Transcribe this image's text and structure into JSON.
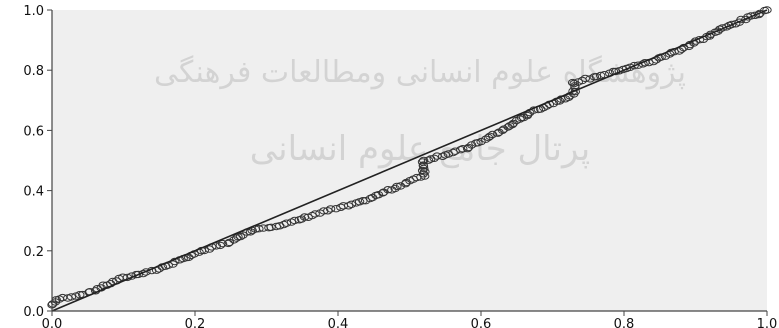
{
  "watermark": {
    "line1": "پژوهشگاه علوم انسانی ومطالعات فرهنگی",
    "line2": "پرتال جامع علوم انسانی"
  },
  "chart_data": {
    "type": "scatter",
    "title": "",
    "xlabel": "",
    "ylabel": "",
    "xlim": [
      0,
      1
    ],
    "ylim": [
      0,
      1
    ],
    "grid": false,
    "legend": "none",
    "x_ticks": [
      "0.0",
      "0.2",
      "0.4",
      "0.6",
      "0.8",
      "1.0"
    ],
    "y_ticks": [
      "0.0",
      "0.2",
      "0.4",
      "0.6",
      "0.8",
      "1.0"
    ],
    "colors": {
      "plot_bg": "#efefef",
      "marker_stroke": "#333333",
      "reference_line": "#222222",
      "axis": "#444444"
    },
    "reference_line": {
      "x": [
        0,
        1
      ],
      "y": [
        0,
        1
      ]
    },
    "curve_anchors": [
      [
        0.0,
        0.02
      ],
      [
        0.01,
        0.04
      ],
      [
        0.05,
        0.06
      ],
      [
        0.1,
        0.11
      ],
      [
        0.15,
        0.14
      ],
      [
        0.2,
        0.19
      ],
      [
        0.25,
        0.23
      ],
      [
        0.28,
        0.27
      ],
      [
        0.33,
        0.29
      ],
      [
        0.38,
        0.33
      ],
      [
        0.43,
        0.36
      ],
      [
        0.47,
        0.4
      ],
      [
        0.52,
        0.45
      ],
      [
        0.52,
        0.5
      ],
      [
        0.58,
        0.54
      ],
      [
        0.63,
        0.6
      ],
      [
        0.67,
        0.66
      ],
      [
        0.71,
        0.7
      ],
      [
        0.73,
        0.72
      ],
      [
        0.73,
        0.76
      ],
      [
        0.78,
        0.79
      ],
      [
        0.84,
        0.83
      ],
      [
        0.89,
        0.88
      ],
      [
        0.93,
        0.93
      ],
      [
        0.97,
        0.97
      ],
      [
        1.0,
        1.0
      ]
    ]
  }
}
